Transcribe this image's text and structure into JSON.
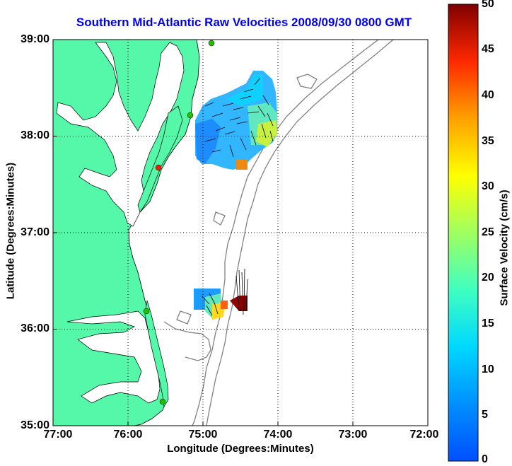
{
  "title": "Southern Mid-Atlantic Raw Velocities 2008/09/30 0800 GMT",
  "x_axis": {
    "label": "Longitude (Degrees:Minutes)",
    "ticks": [
      "77:00",
      "76:00",
      "75:00",
      "74:00",
      "73:00",
      "72:00"
    ]
  },
  "y_axis": {
    "label": "Latitude (Degrees:Minutes)",
    "ticks": [
      "39:00",
      "38:00",
      "37:00",
      "36:00",
      "35:00"
    ]
  },
  "colorbar": {
    "label": "Surface Velocity (cm/s)",
    "ticks": [
      "50",
      "45",
      "40",
      "35",
      "30",
      "25",
      "20",
      "15",
      "10",
      "5",
      "0"
    ],
    "min": 0,
    "max": 50,
    "colormap": "jet"
  },
  "colors": {
    "title": "#0000ee",
    "land": "#55f8a8",
    "coastline": "#000000",
    "bathymetry": "#808080",
    "grid": "#000000",
    "station_marker": "#22c000",
    "station_marker_alt": "#ee2200"
  },
  "map": {
    "lon_range": [
      -77,
      -72
    ],
    "lat_range": [
      35,
      39
    ],
    "grid": "dotted",
    "station_markers": 6
  }
}
